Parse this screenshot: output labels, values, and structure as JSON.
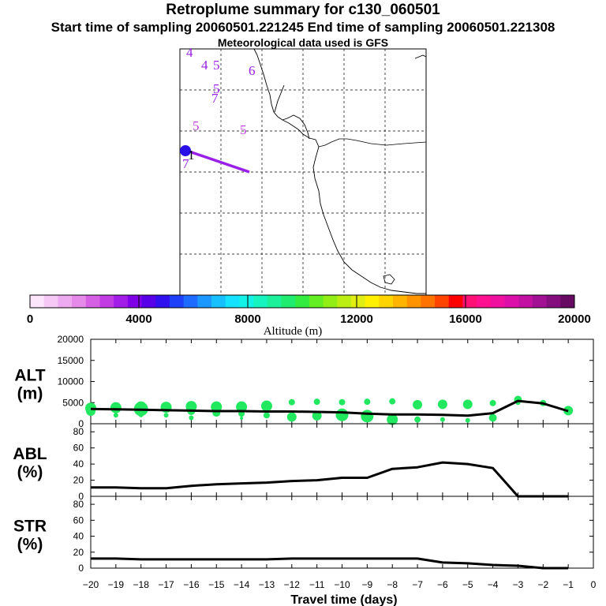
{
  "header": {
    "title": "Retroplume summary for c130_060501",
    "sampling": "Start time of sampling 20060501.221245     End time of sampling 20060501.221308",
    "met": "Meteorological data used is GFS"
  },
  "map": {
    "labels": [
      "4",
      "4",
      "5",
      "6",
      "5",
      "7",
      "5",
      "5",
      "1",
      "7"
    ],
    "plume_color": "#9a20e8"
  },
  "colorbar": {
    "title": "Altitude (m)",
    "ticks": [
      "0",
      "4000",
      "8000",
      "12000",
      "16000",
      "20000"
    ],
    "colors": [
      "#fbe6fb",
      "#f5c8f5",
      "#eeaaf0",
      "#e58ae8",
      "#d660e4",
      "#c23ce4",
      "#a21ee8",
      "#8000e8",
      "#5800e8",
      "#3010ee",
      "#1e40f8",
      "#1e6cff",
      "#1a98ff",
      "#16c0ff",
      "#14e2ff",
      "#12f2e6",
      "#18f4c0",
      "#1cf09a",
      "#20ec70",
      "#34ec40",
      "#62ee22",
      "#92ee14",
      "#bcee14",
      "#e0ee14",
      "#fff000",
      "#ffd400",
      "#ffb400",
      "#ff9400",
      "#ff7400",
      "#ff4400",
      "#ff0000",
      "#ff1074",
      "#ff1090",
      "#f010a0",
      "#dc10a8",
      "#c210a0",
      "#a21094",
      "#840e7e",
      "#660a62"
    ]
  },
  "chart_data": [
    {
      "type": "line",
      "title": "ALT (m)",
      "ylabel_top": "ALT",
      "ylabel_bottom": "(m)",
      "ylim": [
        0,
        20000
      ],
      "yticks": [
        "0",
        "5000",
        "10000",
        "15000",
        "20000"
      ],
      "x": [
        -20,
        -19,
        -18,
        -17,
        -16,
        -15,
        -14,
        -13,
        -12,
        -11,
        -10,
        -9,
        -8,
        -7,
        -6,
        -5,
        -4,
        -3,
        -2,
        -1
      ],
      "values": [
        3500,
        3400,
        3300,
        3200,
        3100,
        3000,
        3000,
        2900,
        2900,
        2800,
        2700,
        2400,
        2200,
        2200,
        2100,
        1900,
        2500,
        5400,
        4800,
        3000
      ],
      "scatter": [
        {
          "x": -20,
          "y": 3000,
          "s": 6
        },
        {
          "x": -20,
          "y": 3700,
          "s": 7
        },
        {
          "x": -19,
          "y": 3800,
          "s": 7
        },
        {
          "x": -19,
          "y": 2000,
          "s": 3
        },
        {
          "x": -18,
          "y": 3500,
          "s": 9
        },
        {
          "x": -18,
          "y": 4000,
          "s": 7
        },
        {
          "x": -18,
          "y": 2100,
          "s": 3
        },
        {
          "x": -17,
          "y": 3900,
          "s": 7
        },
        {
          "x": -17,
          "y": 2000,
          "s": 3
        },
        {
          "x": -16,
          "y": 4100,
          "s": 7
        },
        {
          "x": -16,
          "y": 3000,
          "s": 5
        },
        {
          "x": -16,
          "y": 1400,
          "s": 3
        },
        {
          "x": -15,
          "y": 4000,
          "s": 7
        },
        {
          "x": -15,
          "y": 2600,
          "s": 5
        },
        {
          "x": -14,
          "y": 4000,
          "s": 7
        },
        {
          "x": -14,
          "y": 2400,
          "s": 4
        },
        {
          "x": -14,
          "y": 1300,
          "s": 2
        },
        {
          "x": -13,
          "y": 4200,
          "s": 7
        },
        {
          "x": -13,
          "y": 2000,
          "s": 4
        },
        {
          "x": -12,
          "y": 5100,
          "s": 4
        },
        {
          "x": -12,
          "y": 1600,
          "s": 6
        },
        {
          "x": -11,
          "y": 5200,
          "s": 4
        },
        {
          "x": -11,
          "y": 1900,
          "s": 6
        },
        {
          "x": -10,
          "y": 5100,
          "s": 4
        },
        {
          "x": -10,
          "y": 2100,
          "s": 8
        },
        {
          "x": -9,
          "y": 5200,
          "s": 4
        },
        {
          "x": -9,
          "y": 1800,
          "s": 8
        },
        {
          "x": -8,
          "y": 5300,
          "s": 4
        },
        {
          "x": -8,
          "y": 1000,
          "s": 7
        },
        {
          "x": -7,
          "y": 4500,
          "s": 6
        },
        {
          "x": -7,
          "y": 1000,
          "s": 4
        },
        {
          "x": -6,
          "y": 4600,
          "s": 6
        },
        {
          "x": -6,
          "y": 1000,
          "s": 3
        },
        {
          "x": -5,
          "y": 4600,
          "s": 6
        },
        {
          "x": -5,
          "y": 800,
          "s": 3
        },
        {
          "x": -4,
          "y": 4900,
          "s": 4
        },
        {
          "x": -4,
          "y": 1400,
          "s": 5
        },
        {
          "x": -3,
          "y": 5700,
          "s": 5
        },
        {
          "x": -3,
          "y": 5000,
          "s": 3
        },
        {
          "x": -2,
          "y": 4900,
          "s": 4
        },
        {
          "x": -1,
          "y": 3100,
          "s": 6
        }
      ]
    },
    {
      "type": "line",
      "title": "ABL (%)",
      "ylabel_top": "ABL",
      "ylabel_bottom": "(%)",
      "ylim": [
        0,
        90
      ],
      "yticks": [
        "0",
        "20",
        "40",
        "60",
        "80"
      ],
      "x": [
        -20,
        -19,
        -18,
        -17,
        -16,
        -15,
        -14,
        -13,
        -12,
        -11,
        -10,
        -9,
        -8,
        -7,
        -6,
        -5,
        -4,
        -3,
        -2,
        -1
      ],
      "values": [
        11,
        11,
        10,
        10,
        13,
        15,
        16,
        17,
        19,
        20,
        23,
        23,
        34,
        36,
        42,
        40,
        35,
        0,
        0,
        0
      ]
    },
    {
      "type": "line",
      "title": "STR (%)",
      "ylabel_top": "STR",
      "ylabel_bottom": "(%)",
      "ylim": [
        0,
        90
      ],
      "yticks": [
        "0",
        "20",
        "40",
        "60",
        "80"
      ],
      "x": [
        -20,
        -19,
        -18,
        -17,
        -16,
        -15,
        -14,
        -13,
        -12,
        -11,
        -10,
        -9,
        -8,
        -7,
        -6,
        -5,
        -4,
        -3,
        -2,
        -1
      ],
      "values": [
        12,
        12,
        11,
        11,
        11,
        11,
        11,
        11,
        12,
        12,
        12,
        12,
        12,
        12,
        7,
        6,
        4,
        3,
        0,
        0
      ]
    }
  ],
  "xaxis": {
    "label": "Travel time (days)",
    "ticks": [
      "−20",
      "−19",
      "−18",
      "−17",
      "−16",
      "−15",
      "−14",
      "−13",
      "−12",
      "−11",
      "−10",
      "−9",
      "−8",
      "−7",
      "−6",
      "−5",
      "−4",
      "−3",
      "−2",
      "−1",
      "0"
    ]
  }
}
